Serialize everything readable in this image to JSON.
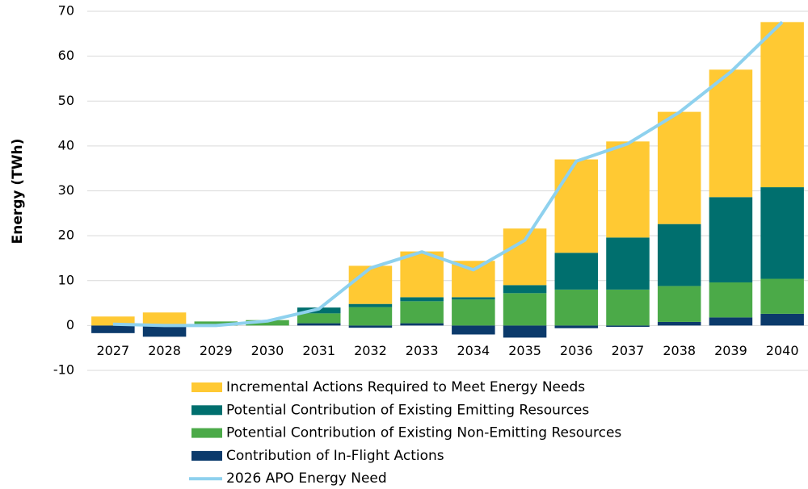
{
  "chart_data": {
    "type": "bar",
    "stacked": true,
    "y_label": "Energy (TWh)",
    "categories": [
      "2027",
      "2028",
      "2029",
      "2030",
      "2031",
      "2032",
      "2033",
      "2034",
      "2035",
      "2036",
      "2037",
      "2038",
      "2039",
      "2040"
    ],
    "series": [
      {
        "name": "Incremental Actions Required to Meet Energy Needs",
        "color": "#FFC933",
        "values": [
          2.0,
          2.9,
          0,
          0,
          0,
          8.5,
          10.2,
          8.1,
          12.6,
          20.8,
          21.4,
          25.0,
          28.4,
          36.8
        ]
      },
      {
        "name": "Potential Contribution of Existing Emitting Resources",
        "color": "#006F6E",
        "values": [
          0,
          0,
          0,
          0,
          1.3,
          0.7,
          0.9,
          0.5,
          1.8,
          8.2,
          11.6,
          13.8,
          19.0,
          20.4
        ]
      },
      {
        "name": "Potential Contribution of Existing Non-Emitting Resources",
        "color": "#4BAA48",
        "values": [
          0,
          0,
          0.9,
          1.2,
          2.2,
          4.1,
          4.9,
          5.8,
          7.2,
          8.0,
          8.0,
          8.0,
          7.8,
          7.8
        ]
      },
      {
        "name": "Contribution of In-Flight Actions",
        "color": "#0B3A6B",
        "values": [
          -1.7,
          -2.5,
          0,
          0,
          0.5,
          -0.5,
          0.5,
          -2.0,
          -2.7,
          -0.6,
          -0.3,
          0.8,
          1.8,
          2.6
        ]
      },
      {
        "name": "2026 APO Energy Need",
        "type": "line",
        "color": "#8ED1EE",
        "values": [
          0.3,
          0,
          0,
          1.0,
          3.7,
          12.8,
          16.4,
          12.4,
          19.0,
          36.6,
          40.5,
          47.5,
          56.5,
          67.6
        ]
      }
    ],
    "ylim": [
      -10,
      70
    ],
    "yticks": [
      -10,
      0,
      10,
      20,
      30,
      40,
      50,
      60,
      70
    ],
    "grid": true
  }
}
